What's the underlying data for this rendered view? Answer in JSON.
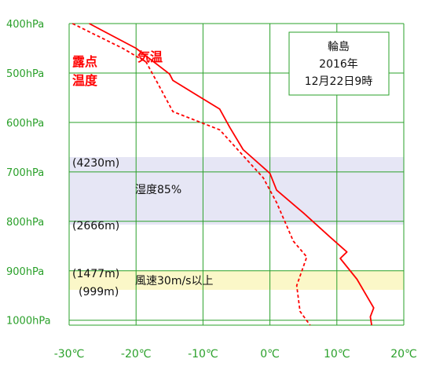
{
  "chart_data": {
    "type": "line",
    "x_unit": "°C",
    "y_unit": "hPa",
    "x_ticks": [
      -30,
      -20,
      -10,
      0,
      10,
      20
    ],
    "x_tick_labels": [
      "-30℃",
      "-20℃",
      "-10℃",
      "0℃",
      "10℃",
      "20℃"
    ],
    "y_ticks": [
      400,
      500,
      600,
      700,
      800,
      900,
      1000
    ],
    "y_tick_labels": [
      "400hPa",
      "500hPa",
      "600hPa",
      "700hPa",
      "800hPa",
      "900hPa",
      "1000hPa"
    ],
    "xlim": [
      -30,
      20
    ],
    "ylim": [
      400,
      1010
    ],
    "grid": true,
    "series": [
      {
        "name": "気温",
        "style": "solid",
        "color": "#ff0000",
        "points": [
          {
            "x": -27,
            "y": 400
          },
          {
            "x": -20,
            "y": 450
          },
          {
            "x": -15,
            "y": 502
          },
          {
            "x": -14.5,
            "y": 515
          },
          {
            "x": -7.5,
            "y": 573
          },
          {
            "x": -6,
            "y": 610
          },
          {
            "x": -4,
            "y": 655
          },
          {
            "x": 0,
            "y": 703
          },
          {
            "x": 1,
            "y": 737
          },
          {
            "x": 5,
            "y": 783
          },
          {
            "x": 9,
            "y": 832
          },
          {
            "x": 11.5,
            "y": 862
          },
          {
            "x": 10.5,
            "y": 875
          },
          {
            "x": 13,
            "y": 917
          },
          {
            "x": 15.5,
            "y": 975
          },
          {
            "x": 15,
            "y": 993
          },
          {
            "x": 15.2,
            "y": 1010
          }
        ]
      },
      {
        "name": "露点温度",
        "style": "dashed",
        "color": "#ff0000",
        "points": [
          {
            "x": -29.5,
            "y": 400
          },
          {
            "x": -22,
            "y": 450
          },
          {
            "x": -18.5,
            "y": 478
          },
          {
            "x": -17,
            "y": 515
          },
          {
            "x": -14.5,
            "y": 578
          },
          {
            "x": -7.5,
            "y": 615
          },
          {
            "x": -1,
            "y": 712
          },
          {
            "x": 1,
            "y": 762
          },
          {
            "x": 3.5,
            "y": 840
          },
          {
            "x": 5.5,
            "y": 872
          },
          {
            "x": 4,
            "y": 930
          },
          {
            "x": 4.5,
            "y": 982
          },
          {
            "x": 6,
            "y": 1010
          }
        ]
      }
    ],
    "bands": [
      {
        "label": "湿度85%",
        "from_label": "(4230m)",
        "to_label": "(2666m)",
        "color": "#e6e6f5"
      },
      {
        "label": "風速30m/s以上",
        "from_label": "(1477m)",
        "to_label": "(999m)",
        "color": "#fbf7c8"
      }
    ],
    "infobox": {
      "line1": "輪島",
      "line2": "2016年",
      "line3": "12月22日9時"
    }
  }
}
